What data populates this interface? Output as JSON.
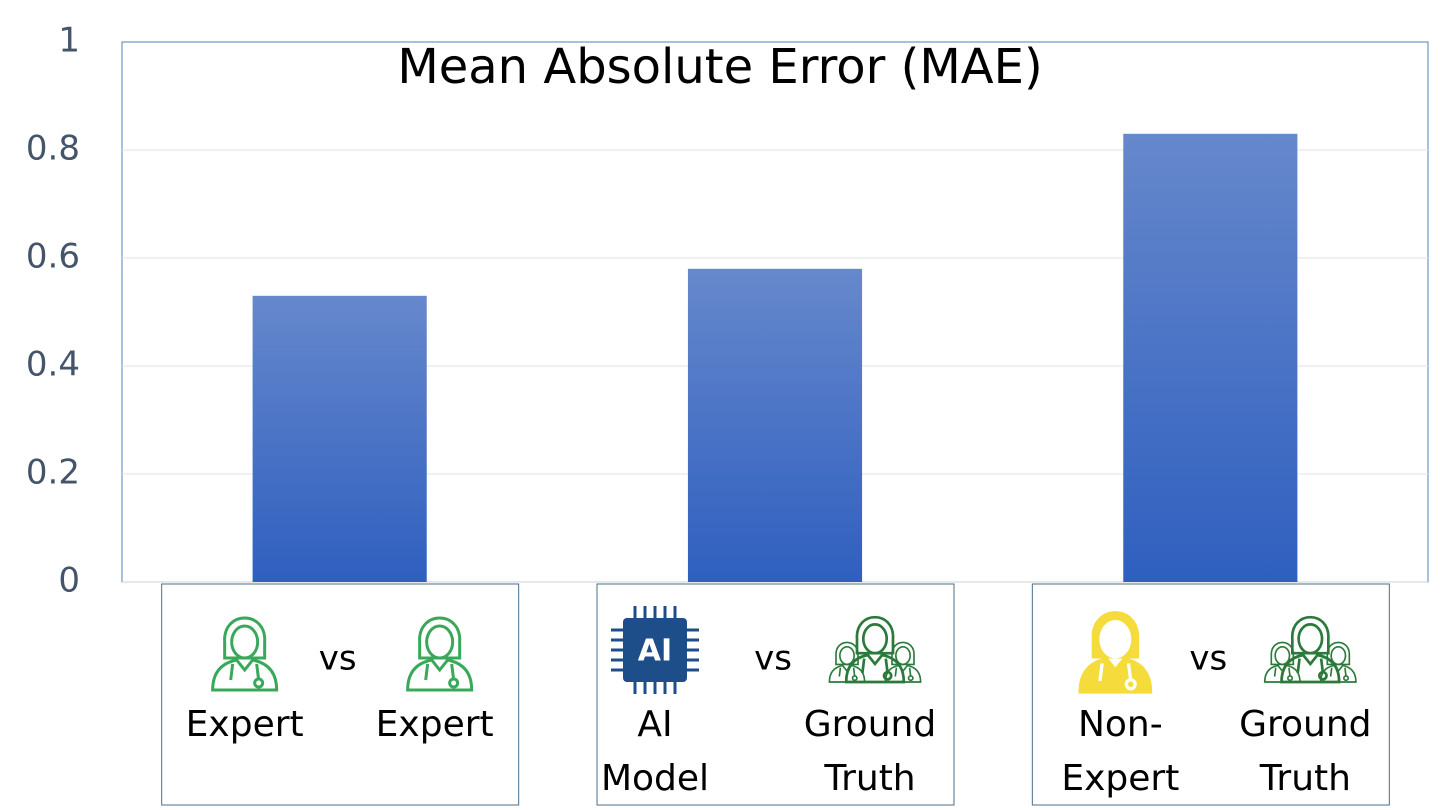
{
  "chart_data": {
    "type": "bar",
    "title": "Mean Absolute Error (MAE)",
    "categories": [
      {
        "left": [
          "Expert"
        ],
        "connector": "vs",
        "right": [
          "Expert"
        ]
      },
      {
        "left": [
          "AI",
          "Model"
        ],
        "left_icon_label": "AI",
        "connector": "vs",
        "right": [
          "Ground",
          "Truth"
        ]
      },
      {
        "left": [
          "Non-",
          "Expert"
        ],
        "connector": "vs",
        "right": [
          "Ground",
          "Truth"
        ]
      }
    ],
    "values": [
      0.53,
      0.58,
      0.83
    ],
    "color": "#3d68c4",
    "ylim": [
      0,
      1
    ],
    "yticks": [
      0,
      0.2,
      0.4,
      0.6,
      0.8,
      1
    ],
    "grid": true
  }
}
